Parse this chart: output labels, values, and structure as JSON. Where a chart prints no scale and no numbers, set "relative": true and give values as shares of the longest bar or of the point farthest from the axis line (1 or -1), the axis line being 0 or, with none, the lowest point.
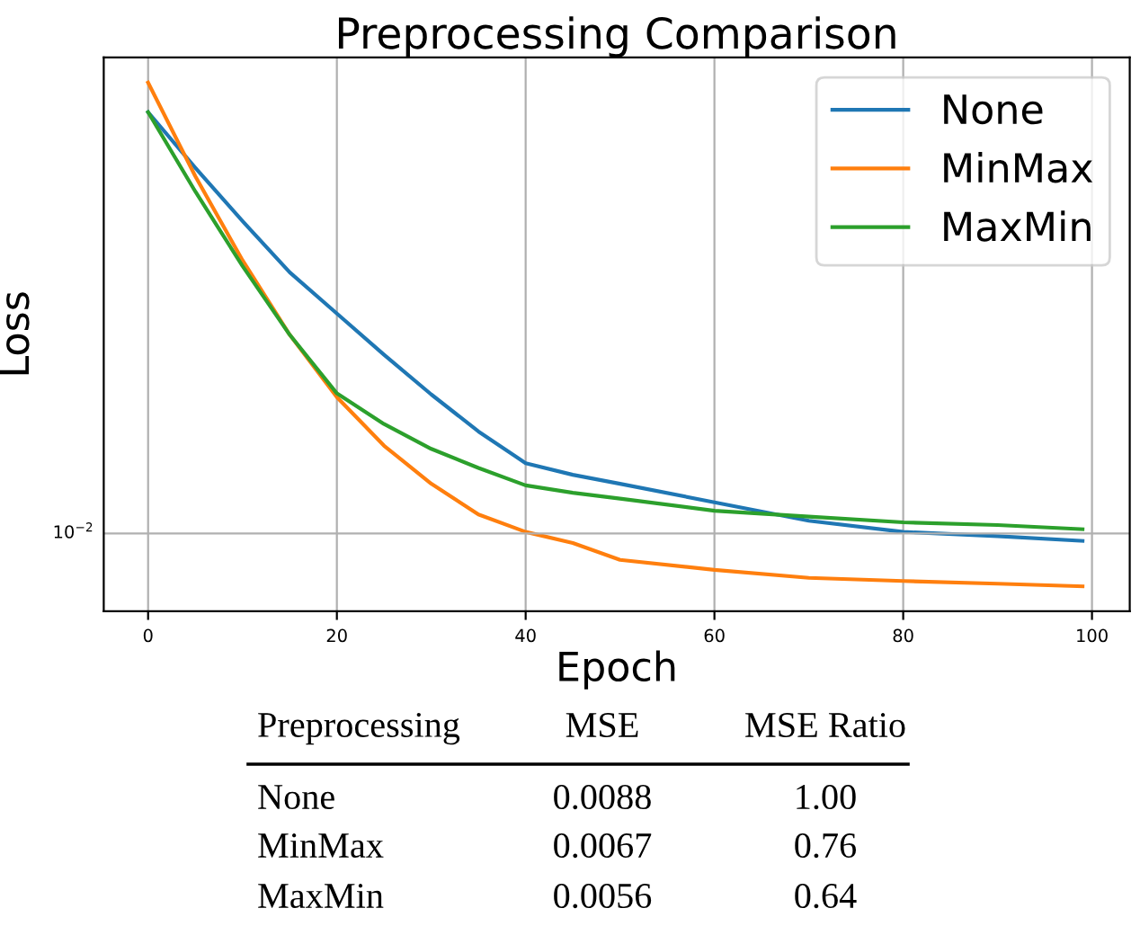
{
  "chart_data": {
    "type": "line",
    "title": "Preprocessing Comparison",
    "xlabel": "Epoch",
    "ylabel": "Loss",
    "relative": true,
    "x": [
      0,
      5,
      10,
      15,
      20,
      25,
      30,
      35,
      40,
      45,
      50,
      60,
      70,
      80,
      90,
      99
    ],
    "series": [
      {
        "name": "None",
        "color": "#1f77b4",
        "values": [
          0.944,
          0.839,
          0.738,
          0.641,
          0.563,
          0.485,
          0.41,
          0.34,
          0.28,
          0.258,
          0.241,
          0.206,
          0.171,
          0.15,
          0.142,
          0.133
        ]
      },
      {
        "name": "MinMax",
        "color": "#ff7f0e",
        "values": [
          1.0,
          0.823,
          0.664,
          0.523,
          0.405,
          0.313,
          0.241,
          0.183,
          0.15,
          0.129,
          0.097,
          0.078,
          0.063,
          0.057,
          0.052,
          0.047
        ]
      },
      {
        "name": "MaxMin",
        "color": "#2ca02c",
        "values": [
          0.944,
          0.794,
          0.653,
          0.523,
          0.412,
          0.354,
          0.307,
          0.271,
          0.238,
          0.224,
          0.213,
          0.19,
          0.179,
          0.168,
          0.163,
          0.155
        ]
      }
    ],
    "xlim": [
      -4.7,
      104
    ],
    "xticks": [
      0,
      20,
      40,
      60,
      80,
      100
    ],
    "ref_lines": [
      {
        "axis": "y",
        "value": 0.147,
        "label": "10$^{−2}$",
        "color": "#b0b0b0"
      }
    ],
    "grid": "x",
    "legend": "top right",
    "line_style": "solid",
    "annotations": [
      "Preprocessing",
      "MSE",
      "MSE Ratio",
      "None",
      "0.0088",
      "1.00",
      "MinMax",
      "0.0067",
      "0.76",
      "MaxMin",
      "0.0056",
      "0.64"
    ]
  }
}
